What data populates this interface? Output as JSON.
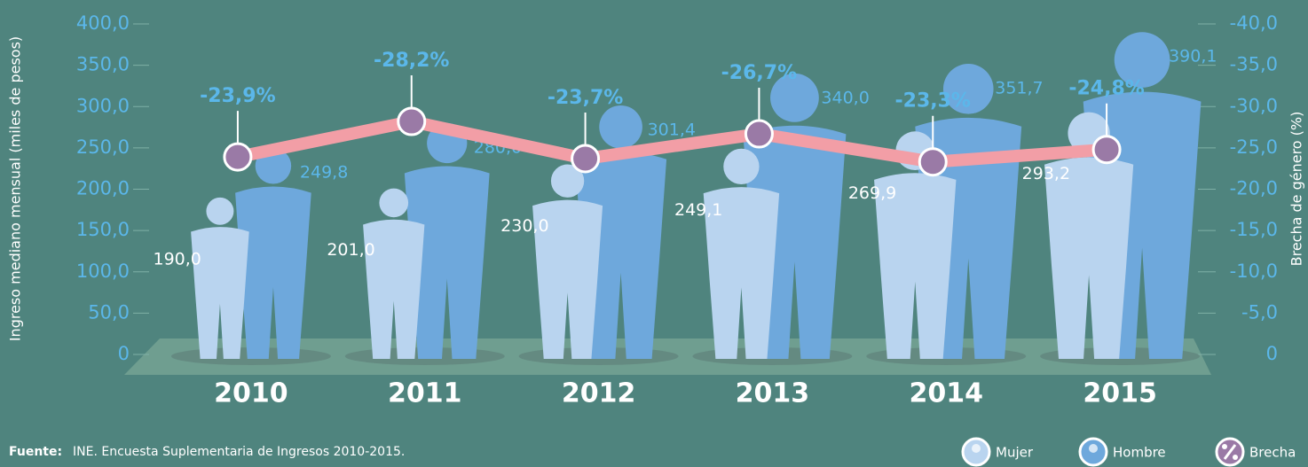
{
  "chart_data": {
    "type": "bar",
    "y_label": "Ingreso mediano mensual (miles de pesos)",
    "y2_label": "Brecha de género (%)",
    "source_label": "Fuente:",
    "source": "INE. Encuesta Suplementaria de Ingresos 2010-2015.",
    "categories": [
      "2010",
      "2011",
      "2012",
      "2013",
      "2014",
      "2015"
    ],
    "series": [
      {
        "name": "Mujer",
        "color": "#b9d4ef",
        "values": [
          190.0,
          201.0,
          230.0,
          249.1,
          269.9,
          293.2
        ],
        "value_labels": [
          "190,0",
          "201,0",
          "230,0",
          "249,1",
          "269,9",
          "293,2"
        ]
      },
      {
        "name": "Hombre",
        "color": "#6ea8dc",
        "values": [
          249.8,
          280.0,
          301.4,
          340.0,
          351.7,
          390.1
        ],
        "value_labels": [
          "249,8",
          "280,0",
          "301,4",
          "340,0",
          "351,7",
          "390,1"
        ]
      },
      {
        "name": "Brecha",
        "color": "#f29ea6",
        "marker_color": "#9a7aa6",
        "axis": "y2",
        "values": [
          -23.9,
          -28.2,
          -23.7,
          -26.7,
          -23.3,
          -24.8
        ],
        "value_labels": [
          "-23,9%",
          "-28,2%",
          "-23,7%",
          "-26,7%",
          "-23,3%",
          "-24,8%"
        ]
      }
    ],
    "ylim": [
      0,
      400
    ],
    "yticks": [
      0,
      {
        "value": 50,
        "label": "50,0"
      },
      {
        "value": 100,
        "label": "100,0"
      },
      {
        "value": 150,
        "label": "150,0"
      },
      {
        "value": 200,
        "label": "200,0"
      },
      {
        "value": 250,
        "label": "250,0"
      },
      {
        "value": 300,
        "label": "300,0"
      },
      {
        "value": 350,
        "label": "350,0"
      },
      {
        "value": 400,
        "label": "400,0"
      }
    ],
    "y2lim": [
      0,
      -40
    ],
    "y2ticks": [
      0,
      {
        "value": -5,
        "label": "-5,0"
      },
      {
        "value": -10,
        "label": "-10,0"
      },
      {
        "value": -15,
        "label": "-15,0"
      },
      {
        "value": -20,
        "label": "-20,0"
      },
      {
        "value": -25,
        "label": "-25,0"
      },
      {
        "value": -30,
        "label": "-30,0"
      },
      {
        "value": -35,
        "label": "-35,0"
      },
      {
        "value": -40,
        "label": "-40,0"
      }
    ],
    "legend": "bottom-right"
  }
}
